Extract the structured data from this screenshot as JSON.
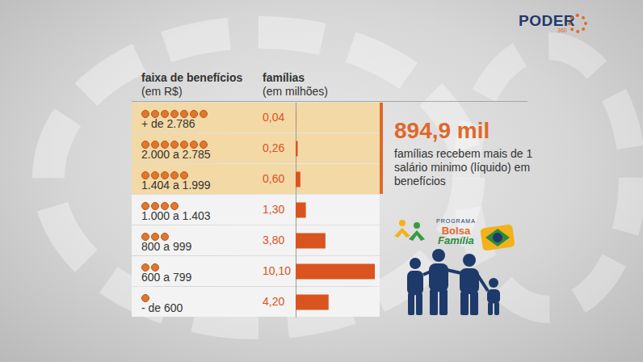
{
  "chart_data": {
    "type": "bar",
    "orientation": "horizontal",
    "category_header": {
      "title": "faixa de benefícios",
      "unit": "(em R$)"
    },
    "value_header": {
      "title": "famílias",
      "unit": "(em milhões)"
    },
    "categories": [
      "+ de 2.786",
      "2.000 a 2.785",
      "1.404 a 1.999",
      "1.000 a 1.403",
      "800 a 999",
      "600 a 799",
      "- de 600"
    ],
    "values": [
      0.04,
      0.26,
      0.6,
      1.3,
      3.8,
      10.1,
      4.2
    ],
    "value_labels": [
      "0,04",
      "0,26",
      "0,60",
      "1,30",
      "3,80",
      "10,10",
      "4,20"
    ],
    "data_labels": true,
    "color": "#d9541e",
    "xlim": [
      0,
      10.1
    ],
    "grid": false,
    "tick_labels": false,
    "annotations": [
      {
        "value_text": "894,9 mil",
        "text": "famílias recebem mais de 1 salário minimo (líquido) em benefícios",
        "categories": [
          "+ de 2.786",
          "2.000 a 2.785",
          "1.404 a 1.999"
        ]
      }
    ],
    "logos": {
      "publisher": "PODER",
      "publisher_suffix": "360",
      "program": [
        "PROGRAMA",
        "Bolsa",
        "Família"
      ]
    }
  }
}
